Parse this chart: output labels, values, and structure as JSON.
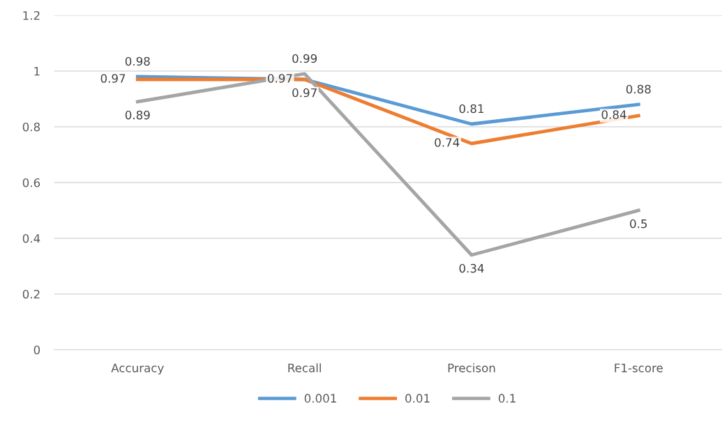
{
  "chart_data": {
    "type": "line",
    "categories": [
      "Accuracy",
      "Recall",
      "Precison",
      "F1-score"
    ],
    "series": [
      {
        "name": "0.001",
        "color": "#5b9bd5",
        "values": [
          0.98,
          0.97,
          0.81,
          0.88
        ]
      },
      {
        "name": "0.01",
        "color": "#ed7d31",
        "values": [
          0.97,
          0.97,
          0.74,
          0.84
        ]
      },
      {
        "name": "0.1",
        "color": "#a5a5a5",
        "values": [
          0.89,
          0.99,
          0.34,
          0.5
        ]
      }
    ],
    "ylim": [
      0,
      1.2
    ],
    "yticks": [
      0,
      0.2,
      0.4,
      0.6,
      0.8,
      1,
      1.2
    ],
    "grid": "y",
    "legend": "bottom",
    "data_labels": true,
    "marker": "none",
    "line_style": "solid"
  }
}
